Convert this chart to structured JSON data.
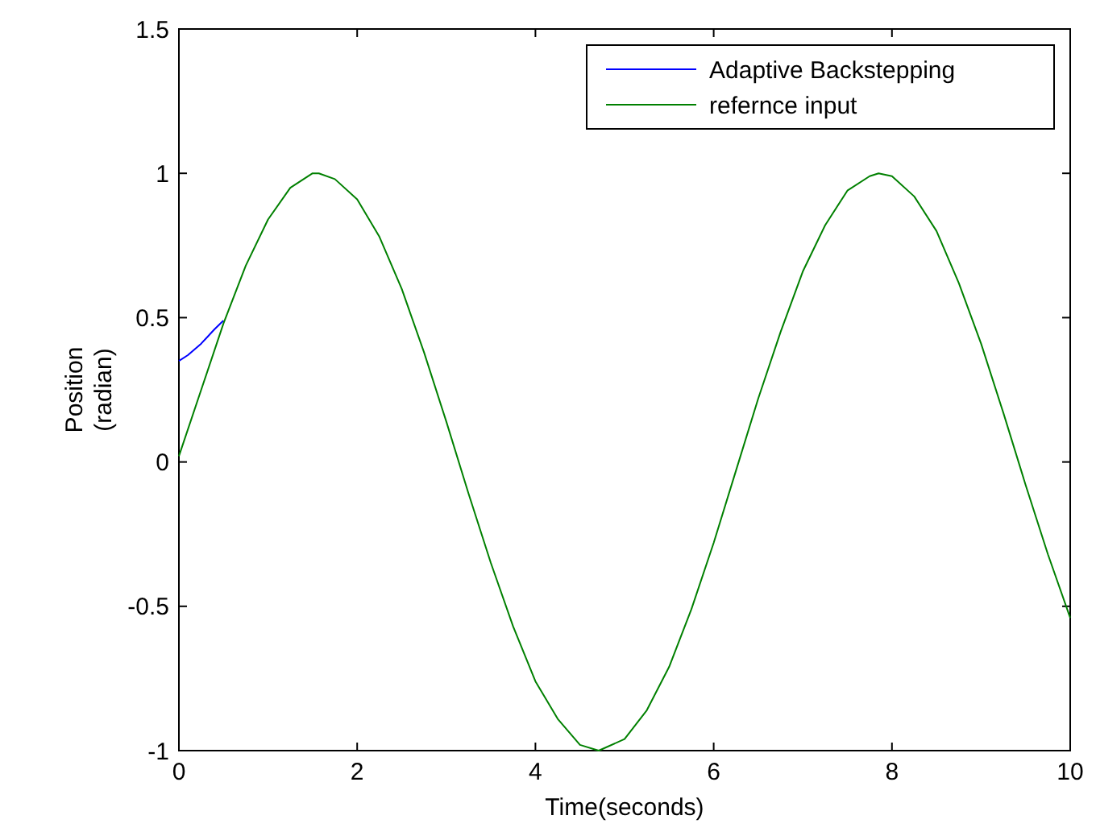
{
  "chart_data": {
    "type": "line",
    "xlabel": "Time(seconds)",
    "ylabel": "Position\n(radian)",
    "xlim": [
      0,
      10
    ],
    "ylim": [
      -1,
      1.5
    ],
    "xticks": [
      0,
      2,
      4,
      6,
      8,
      10
    ],
    "yticks": [
      -1,
      -0.5,
      0,
      0.5,
      1,
      1.5
    ],
    "grid": false,
    "legend": "top right",
    "line_style": "solid",
    "marker": "none",
    "series": [
      {
        "name": "Adaptive Backstepping",
        "color": "#0000ff",
        "x": [
          0,
          0.1,
          0.25,
          0.4,
          0.5
        ],
        "values": [
          0.35,
          0.37,
          0.41,
          0.46,
          0.49
        ]
      },
      {
        "name": "refernce input",
        "color": "#008000",
        "x": [
          0,
          0.25,
          0.5,
          0.75,
          1,
          1.25,
          1.5,
          1.57,
          1.75,
          2,
          2.25,
          2.5,
          2.75,
          3,
          3.25,
          3.5,
          3.75,
          4,
          4.25,
          4.5,
          4.71,
          5,
          5.25,
          5.5,
          5.75,
          6,
          6.25,
          6.5,
          6.75,
          7,
          7.25,
          7.5,
          7.75,
          7.85,
          8,
          8.25,
          8.5,
          8.75,
          9,
          9.25,
          9.5,
          9.75,
          10
        ],
        "values": [
          0.02,
          0.25,
          0.48,
          0.68,
          0.84,
          0.95,
          1.0,
          1.0,
          0.98,
          0.91,
          0.78,
          0.6,
          0.38,
          0.14,
          -0.11,
          -0.35,
          -0.57,
          -0.76,
          -0.89,
          -0.98,
          -1.0,
          -0.96,
          -0.86,
          -0.71,
          -0.51,
          -0.28,
          -0.03,
          0.22,
          0.45,
          0.66,
          0.82,
          0.94,
          0.99,
          1.0,
          0.99,
          0.92,
          0.8,
          0.62,
          0.41,
          0.17,
          -0.08,
          -0.32,
          -0.54
        ]
      }
    ]
  }
}
